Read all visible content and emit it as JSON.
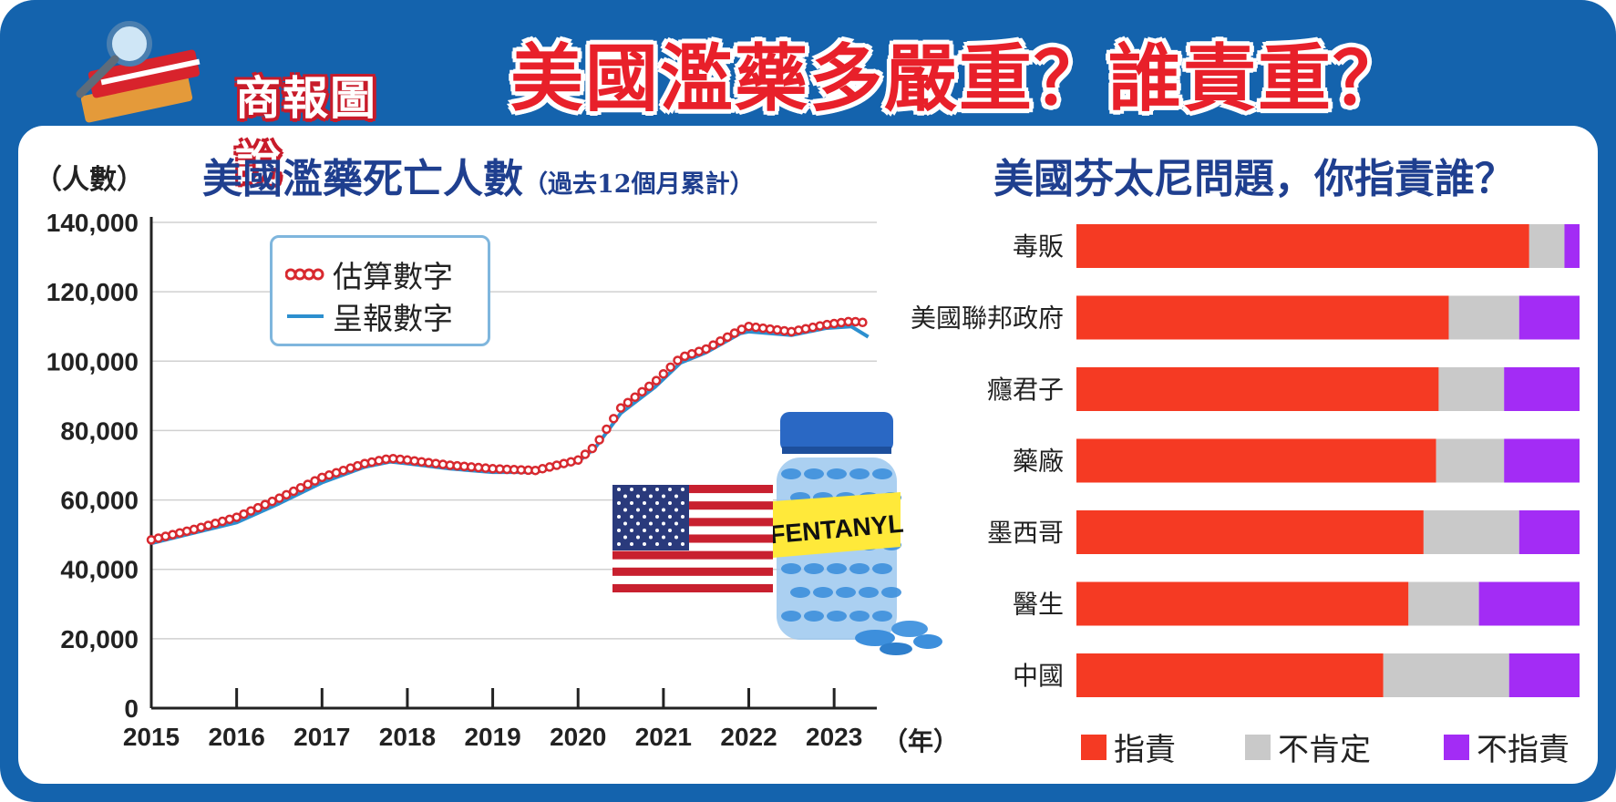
{
  "colors": {
    "frame": "#1463ad",
    "headline": "#e8202a",
    "title": "#1f3f8f",
    "estimate": "#d8292f",
    "reported": "#2c8fcf",
    "blame": "#f53a23",
    "unsure": "#c9c9c9",
    "noblame": "#a32cf5"
  },
  "header": {
    "logo_text": "商報圖說",
    "headline": "美國濫藥多嚴重？誰責重？"
  },
  "left_chart_meta": {
    "title": "美國濫藥死亡人數",
    "subtitle": "（過去12個月累計）",
    "unit": "（人數）",
    "year_unit": "（年）",
    "legend_estimate": "估算數字",
    "legend_reported": "呈報數字",
    "flag_icon": "us-flag-icon",
    "bottle_label": "FENTANYL"
  },
  "right_chart_meta": {
    "title": "美國芬太尼問題，你指責誰？",
    "legend": [
      "指責",
      "不肯定",
      "不指責"
    ]
  },
  "chart_data": [
    {
      "type": "line",
      "title": "美國濫藥死亡人數",
      "ylabel": "（人數）",
      "xlabel": "（年）",
      "ylim": [
        0,
        140000
      ],
      "yticks": [
        "0",
        "20,000",
        "40,000",
        "60,000",
        "80,000",
        "100,000",
        "120,000",
        "140,000"
      ],
      "xticks": [
        "2015",
        "2016",
        "2017",
        "2018",
        "2019",
        "2020",
        "2021",
        "2022",
        "2023"
      ],
      "grid": true,
      "legend": "top-left",
      "x": [
        2015.0,
        2015.5,
        2016.0,
        2016.5,
        2017.0,
        2017.5,
        2017.8,
        2018.0,
        2018.5,
        2019.0,
        2019.5,
        2020.0,
        2020.2,
        2020.5,
        2020.9,
        2021.2,
        2021.5,
        2021.9,
        2022.0,
        2022.5,
        2022.9,
        2023.2,
        2023.4
      ],
      "series": [
        {
          "name": "估算數字",
          "values": [
            48500,
            51500,
            55000,
            60500,
            66500,
            70500,
            72000,
            71500,
            70000,
            69000,
            68500,
            71500,
            75500,
            86500,
            94000,
            101000,
            103500,
            109000,
            110000,
            108500,
            110500,
            111500,
            111000
          ]
        },
        {
          "name": "呈報數字",
          "values": [
            47500,
            50500,
            53500,
            59000,
            65000,
            69500,
            71000,
            70500,
            69000,
            68000,
            68000,
            71000,
            75000,
            85000,
            92500,
            99500,
            102500,
            108000,
            108500,
            107500,
            109500,
            110000,
            107000
          ]
        }
      ]
    },
    {
      "type": "bar",
      "orientation": "horizontal",
      "stacked": true,
      "title": "美國芬太尼問題，你指責誰？",
      "categories": [
        "毒販",
        "美國聯邦政府",
        "癮君子",
        "藥廠",
        "墨西哥",
        "醫生",
        "中國"
      ],
      "series": [
        {
          "name": "指責",
          "values": [
            90,
            74,
            72,
            71.5,
            69,
            66,
            61
          ]
        },
        {
          "name": "不肯定",
          "values": [
            7,
            14,
            13,
            13.5,
            19,
            14,
            25
          ]
        },
        {
          "name": "不指責",
          "values": [
            3,
            12,
            15,
            15,
            12,
            20,
            14
          ]
        }
      ],
      "xlim": [
        0,
        100
      ],
      "legend": "bottom"
    }
  ]
}
